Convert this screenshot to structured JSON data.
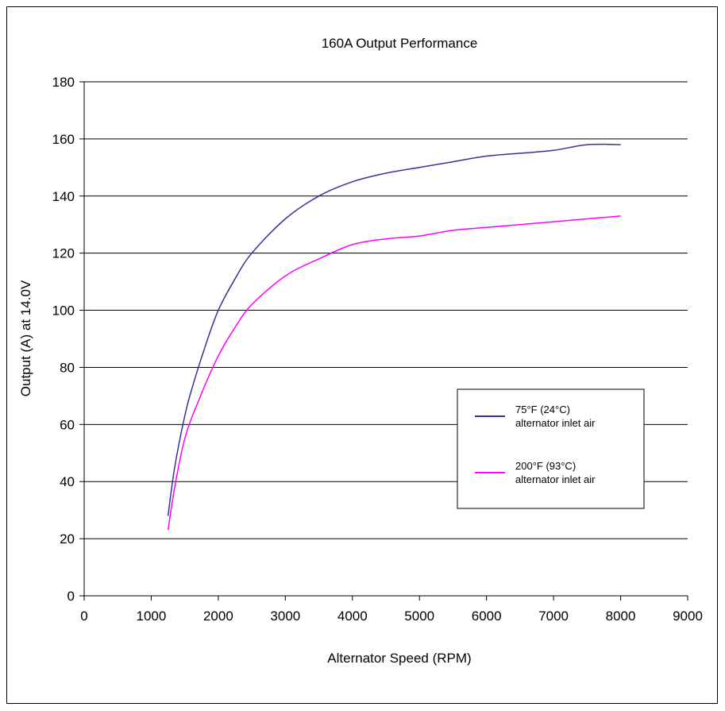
{
  "chart_data": {
    "type": "line",
    "title": "160A Output Performance",
    "xlabel": "Alternator Speed (RPM)",
    "ylabel": "Output (A) at 14.0V",
    "xlim": [
      0,
      9000
    ],
    "ylim": [
      0,
      180
    ],
    "x_ticks": [
      "0",
      "1000",
      "2000",
      "3000",
      "4000",
      "5000",
      "6000",
      "7000",
      "8000",
      "9000"
    ],
    "y_ticks": [
      "0",
      "20",
      "40",
      "60",
      "80",
      "100",
      "120",
      "140",
      "160",
      "180"
    ],
    "grid": "horizontal",
    "legend_position": "right-lower",
    "series": [
      {
        "name_line1": "75°F  (24°C)",
        "name_line2": "alternator inlet air",
        "color": "#333399",
        "x": [
          1250,
          1350,
          1500,
          1600,
          1800,
          2000,
          2250,
          2500,
          3000,
          3500,
          4000,
          4500,
          5000,
          5500,
          6000,
          6500,
          7000,
          7500,
          8000
        ],
        "y": [
          28,
          45,
          63,
          72,
          87,
          100,
          111,
          120,
          132,
          140,
          145,
          148,
          150,
          152,
          154,
          155,
          156,
          158,
          158
        ]
      },
      {
        "name_line1": "200°F (93°C)",
        "name_line2": "alternator inlet air",
        "color": "#ff00ff",
        "x": [
          1250,
          1350,
          1500,
          1700,
          2000,
          2250,
          2500,
          3000,
          3500,
          4000,
          4500,
          5000,
          5500,
          6000,
          6500,
          7000,
          7500,
          8000
        ],
        "y": [
          23,
          38,
          55,
          68,
          84,
          94,
          102,
          112,
          118,
          123,
          125,
          126,
          128,
          129,
          130,
          131,
          132,
          133
        ]
      }
    ]
  }
}
